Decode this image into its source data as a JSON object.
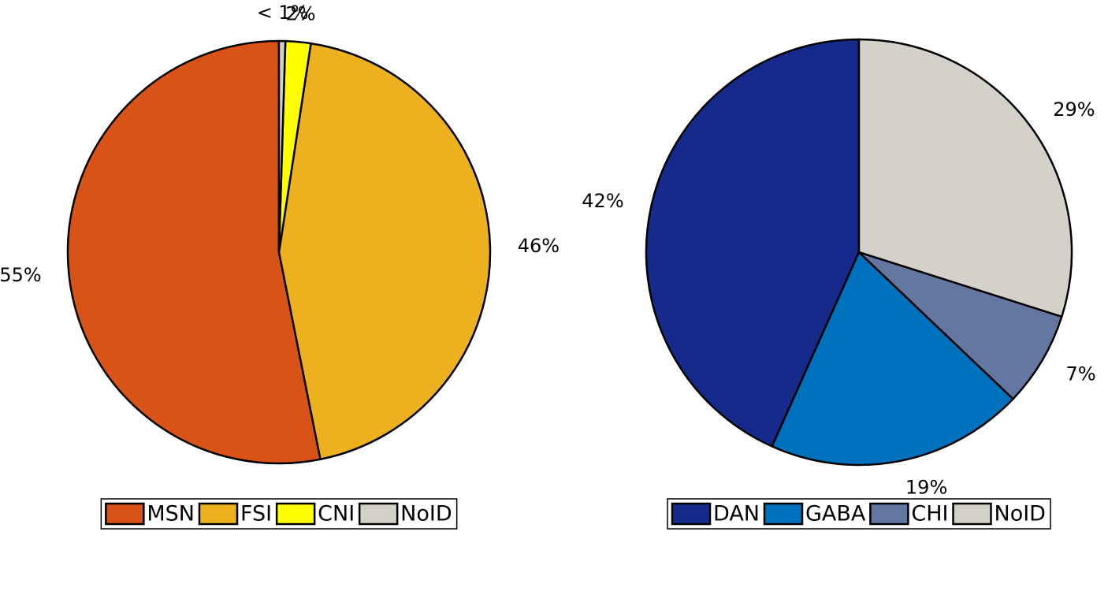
{
  "chart_data": [
    {
      "type": "pie",
      "categories": [
        "MSN",
        "FSI",
        "CNI",
        "NoID"
      ],
      "values": [
        55,
        46,
        2,
        0.5
      ],
      "value_labels": [
        "55%",
        "46%",
        "2%",
        "< 1%"
      ],
      "colors": [
        "#d95319",
        "#edb120",
        "#ffff00",
        "#d4d1cb"
      ]
    },
    {
      "type": "pie",
      "categories": [
        "DAN",
        "GABA",
        "CHI",
        "NoID"
      ],
      "values": [
        42,
        19,
        7,
        29
      ],
      "value_labels": [
        "42%",
        "19%",
        "7%",
        "29%"
      ],
      "colors": [
        "#162a8c",
        "#0072bd",
        "#6477a0",
        "#d4d1cb"
      ]
    }
  ]
}
